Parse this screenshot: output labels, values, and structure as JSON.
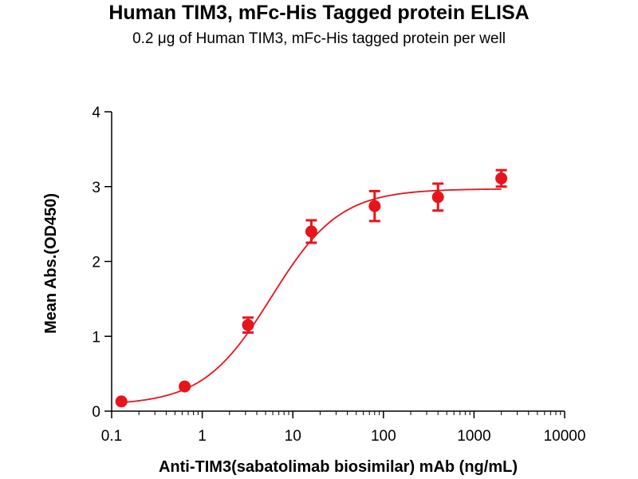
{
  "chart_data": {
    "type": "scatter",
    "title": "Human TIM3, mFc-His Tagged protein ELISA",
    "subtitle": "0.2 μg of Human TIM3, mFc-His tagged protein per well",
    "xlabel": "Anti-TIM3(sabatolimab biosimilar) mAb (ng/mL)",
    "ylabel": "Mean Abs.(OD450)",
    "x_scale": "log",
    "xlim": [
      0.1,
      10000
    ],
    "ylim": [
      0,
      4
    ],
    "x_ticks": [
      0.1,
      1,
      10,
      100,
      1000,
      10000
    ],
    "x_tick_labels": [
      "0.1",
      "1",
      "10",
      "100",
      "1000",
      "10000"
    ],
    "y_ticks": [
      0,
      1,
      2,
      3,
      4
    ],
    "y_tick_labels": [
      "0",
      "1",
      "2",
      "3",
      "4"
    ],
    "grid": false,
    "color": "#e8141b",
    "points": [
      {
        "x": 0.128,
        "y": 0.13,
        "err": 0.02
      },
      {
        "x": 0.64,
        "y": 0.33,
        "err": 0.02
      },
      {
        "x": 3.2,
        "y": 1.15,
        "err": 0.1
      },
      {
        "x": 16,
        "y": 2.4,
        "err": 0.15
      },
      {
        "x": 80,
        "y": 2.74,
        "err": 0.2
      },
      {
        "x": 400,
        "y": 2.86,
        "err": 0.18
      },
      {
        "x": 2000,
        "y": 3.11,
        "err": 0.11
      }
    ],
    "fit": {
      "model": "4PL",
      "bottom": 0.08,
      "top": 2.97,
      "ec50": 5.8,
      "hill": 1.15
    }
  }
}
